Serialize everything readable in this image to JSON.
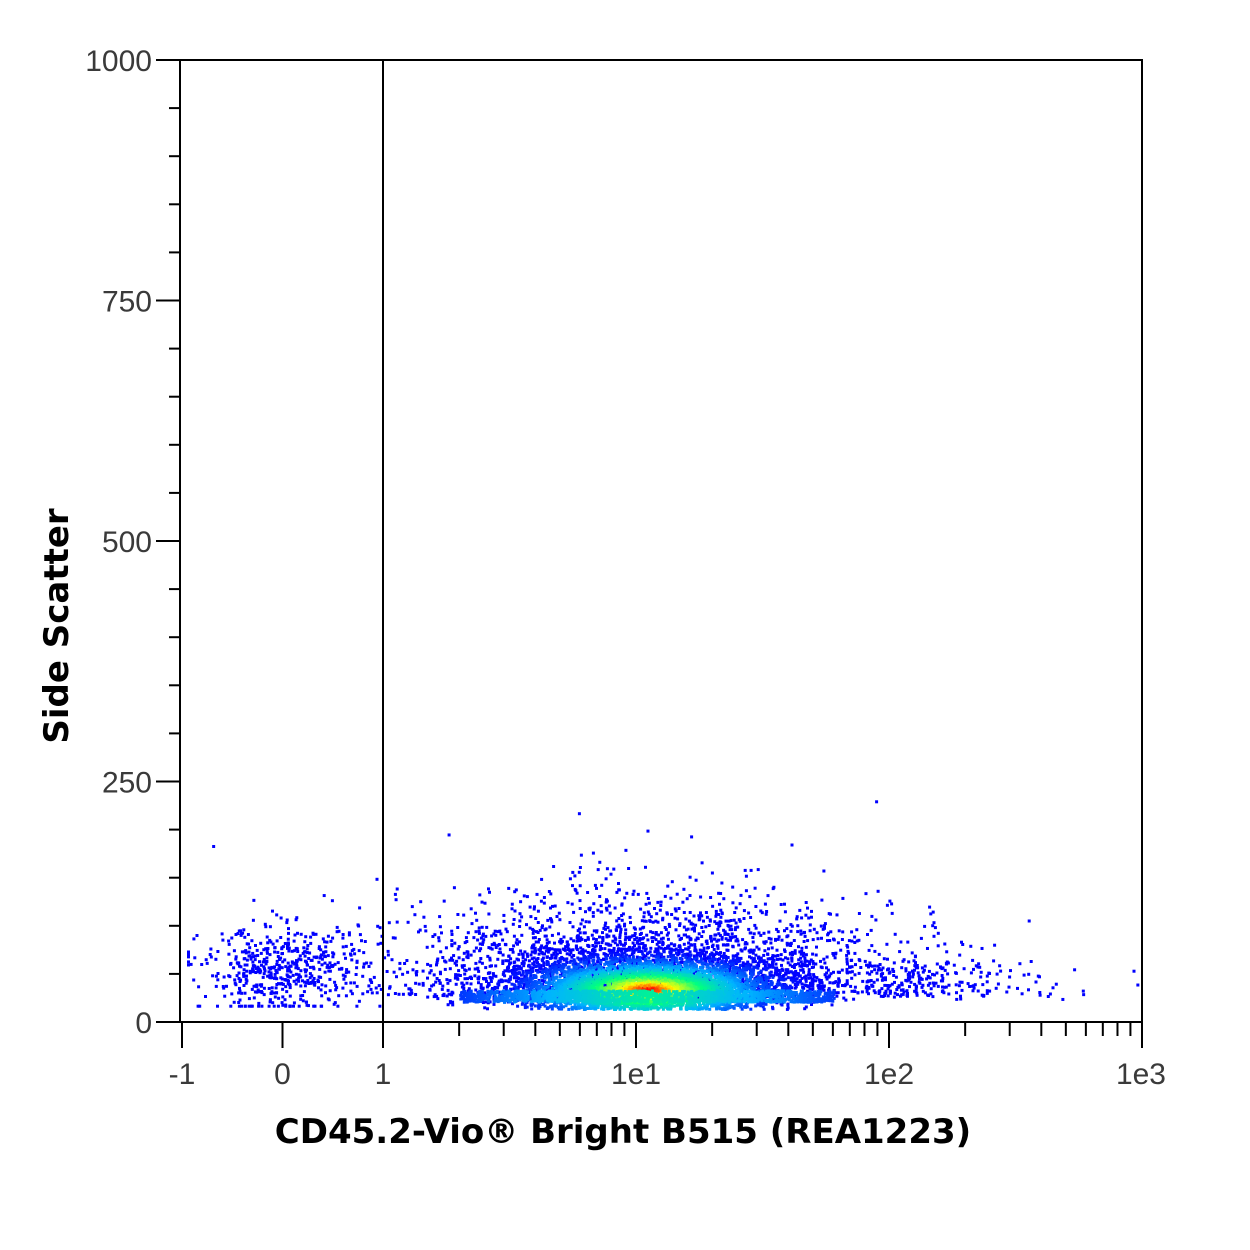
{
  "chart_data": {
    "type": "scatter",
    "title": "",
    "xlabel": "CD45.2-Vio® Bright B515 (REA1223)",
    "ylabel": "Side Scatter",
    "x_scale": "biexponential (linear from -1 to 1, log from 1 to 1e3)",
    "xlim": [
      -1,
      1000
    ],
    "ylim": [
      0,
      1000
    ],
    "x_tick_labels": [
      "-1",
      "0",
      "1",
      "1e1",
      "1e2",
      "1e3"
    ],
    "x_tick_values": [
      -1,
      0,
      1,
      10,
      100,
      1000
    ],
    "y_tick_labels": [
      "0",
      "250",
      "500",
      "750",
      "1000"
    ],
    "y_tick_values": [
      0,
      250,
      500,
      750,
      1000
    ],
    "grid": false,
    "legend": "none",
    "gate": {
      "type": "vertical-line",
      "x": 1
    },
    "colormap": [
      "#0000ff",
      "#00b4ff",
      "#00ff80",
      "#ffff00",
      "#ff0000"
    ],
    "populations": [
      {
        "name": "main",
        "center_x": 11,
        "center_y": 35,
        "spread_log_x": 0.35,
        "spread_y": 22,
        "density": "high"
      },
      {
        "name": "negative",
        "center_x": 0,
        "center_y": 55,
        "spread_x": 0.5,
        "spread_y": 22,
        "density": "low"
      }
    ],
    "sample_points": [
      {
        "x": -0.7,
        "y": 184
      },
      {
        "x": -0.3,
        "y": 128
      },
      {
        "x": 0.4,
        "y": 133
      },
      {
        "x": 1.8,
        "y": 196
      },
      {
        "x": 9,
        "y": 180
      },
      {
        "x": 11,
        "y": 200
      },
      {
        "x": 6,
        "y": 175
      },
      {
        "x": 18,
        "y": 167
      },
      {
        "x": 30,
        "y": 160
      },
      {
        "x": 80,
        "y": 135
      },
      {
        "x": 140,
        "y": 78
      },
      {
        "x": 230,
        "y": 78
      },
      {
        "x": 270,
        "y": 60
      },
      {
        "x": 480,
        "y": 25
      },
      {
        "x": 580,
        "y": 30
      },
      {
        "x": 950,
        "y": 40
      }
    ]
  }
}
